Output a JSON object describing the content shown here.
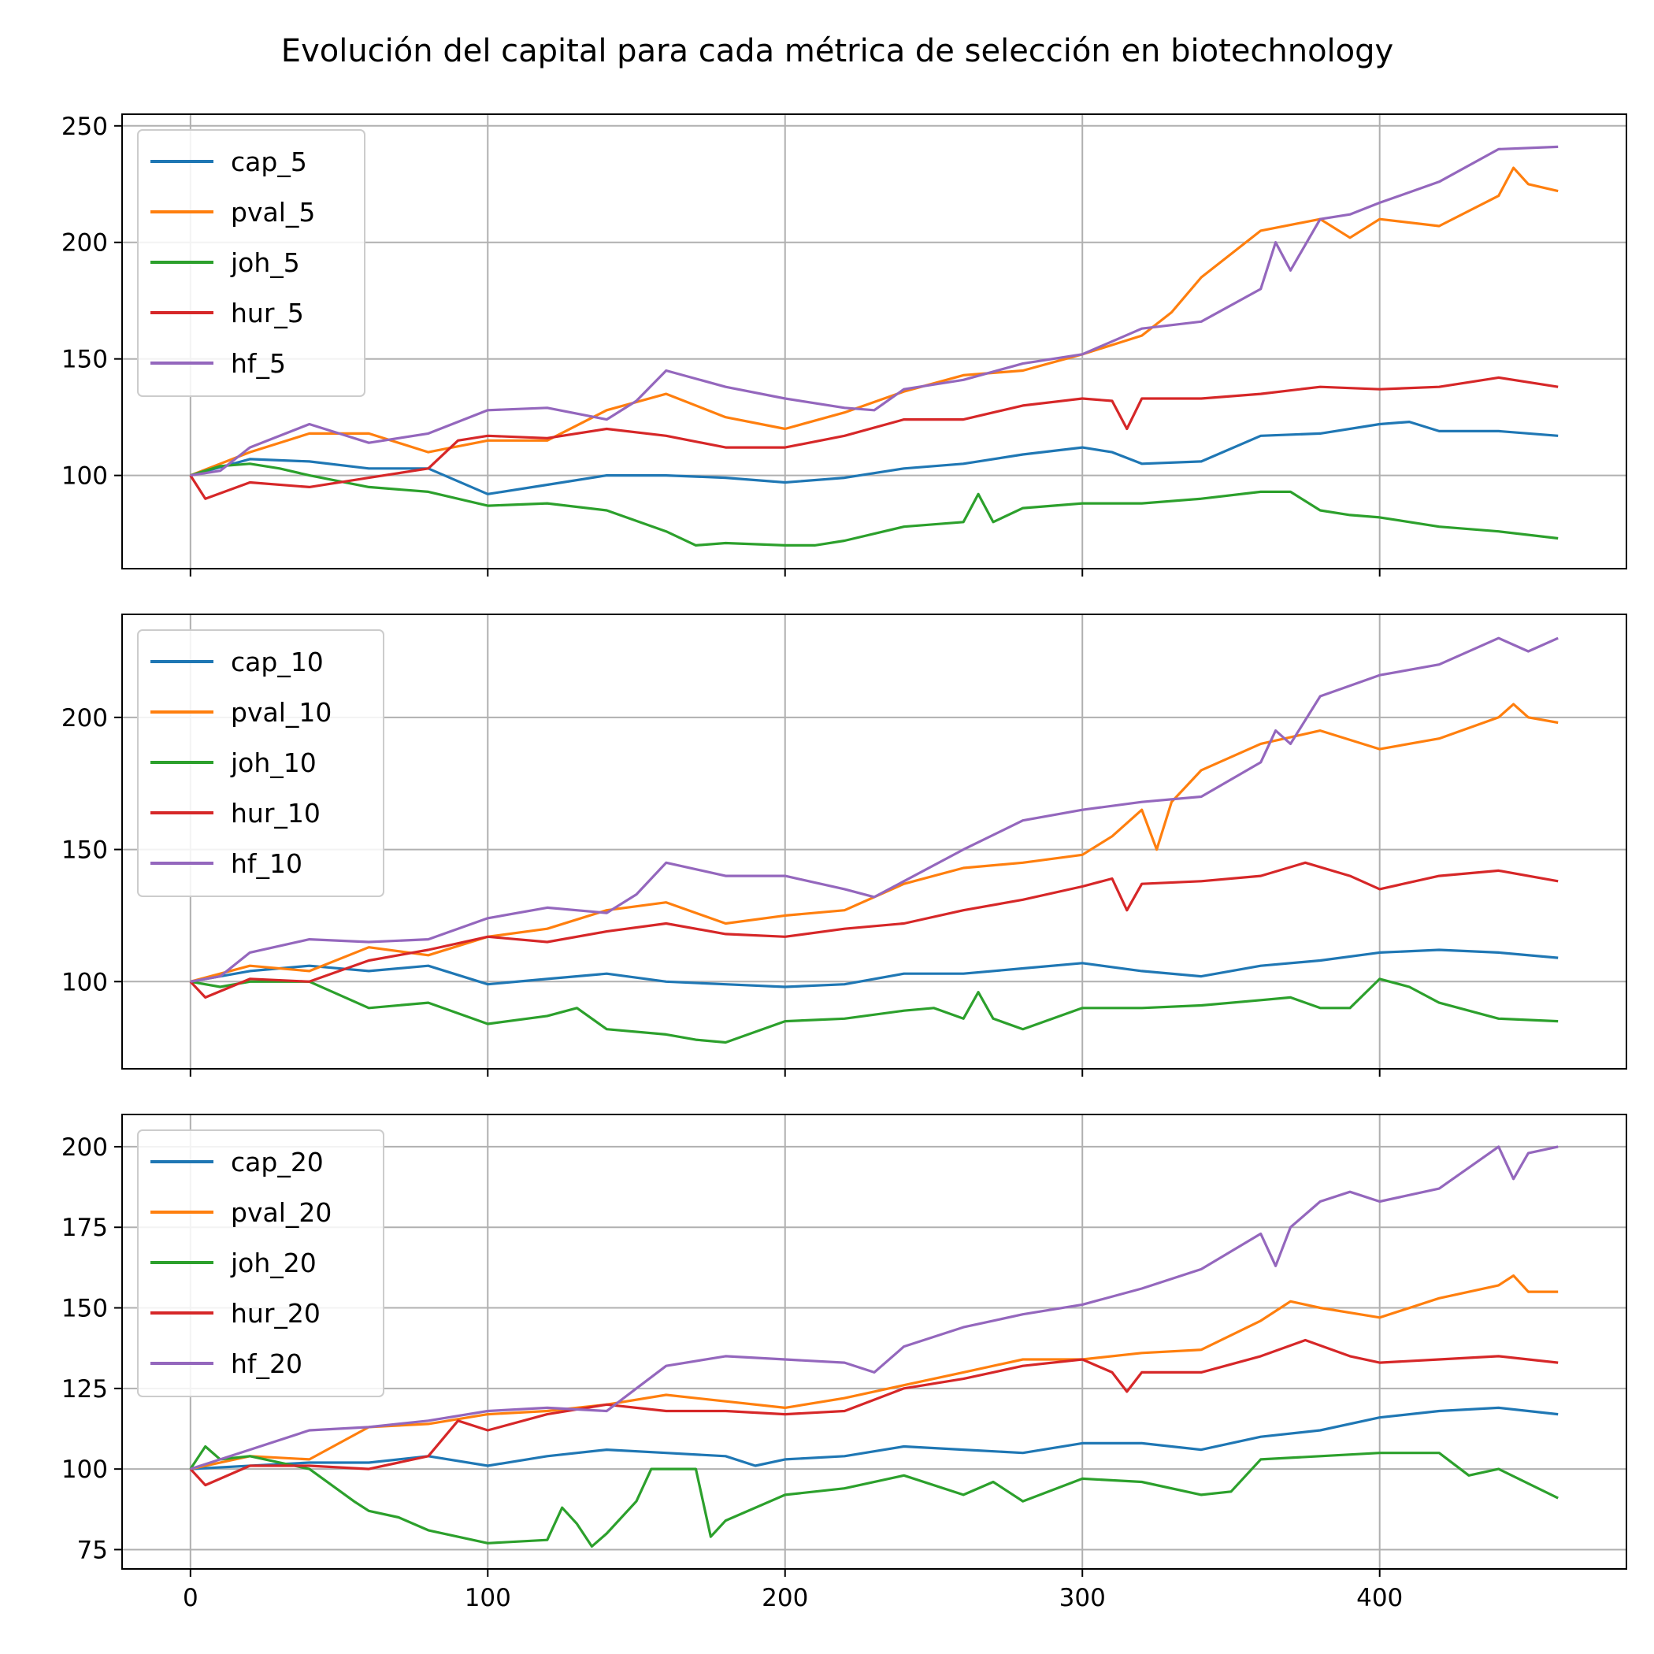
{
  "title": "Evolución del capital para cada métrica de selección en biotechnology",
  "chart_data": [
    {
      "type": "line",
      "xlim": [
        -23,
        483
      ],
      "ylim": [
        60,
        255
      ],
      "xticks": [
        0,
        100,
        200,
        300,
        400
      ],
      "yticks": [
        100,
        150,
        200,
        250
      ],
      "show_xtick_labels": false,
      "grid": true,
      "legend_position": "upper-left",
      "series": [
        {
          "name": "cap_5",
          "color": "#1f77b4",
          "x": [
            0,
            20,
            40,
            60,
            80,
            100,
            120,
            140,
            160,
            180,
            200,
            220,
            240,
            260,
            280,
            300,
            310,
            320,
            340,
            360,
            380,
            400,
            410,
            420,
            440,
            460
          ],
          "y": [
            100,
            107,
            106,
            103,
            103,
            92,
            96,
            100,
            100,
            99,
            97,
            99,
            103,
            105,
            109,
            112,
            110,
            105,
            106,
            117,
            118,
            122,
            123,
            119,
            119,
            117
          ]
        },
        {
          "name": "pval_5",
          "color": "#ff7f0e",
          "x": [
            0,
            20,
            40,
            60,
            80,
            100,
            120,
            140,
            160,
            180,
            200,
            220,
            240,
            260,
            280,
            300,
            320,
            330,
            340,
            360,
            380,
            390,
            400,
            420,
            440,
            445,
            450,
            460
          ],
          "y": [
            100,
            110,
            118,
            118,
            110,
            115,
            115,
            128,
            135,
            125,
            120,
            127,
            136,
            143,
            145,
            152,
            160,
            170,
            185,
            205,
            210,
            202,
            210,
            207,
            220,
            232,
            225,
            222
          ]
        },
        {
          "name": "joh_5",
          "color": "#2ca02c",
          "x": [
            0,
            10,
            20,
            30,
            40,
            60,
            80,
            100,
            120,
            140,
            160,
            170,
            180,
            200,
            210,
            220,
            240,
            260,
            265,
            270,
            280,
            300,
            320,
            340,
            360,
            370,
            380,
            390,
            400,
            420,
            440,
            460
          ],
          "y": [
            100,
            104,
            105,
            103,
            100,
            95,
            93,
            87,
            88,
            85,
            76,
            70,
            71,
            70,
            70,
            72,
            78,
            80,
            92,
            80,
            86,
            88,
            88,
            90,
            93,
            93,
            85,
            83,
            82,
            78,
            76,
            73
          ]
        },
        {
          "name": "hur_5",
          "color": "#d62728",
          "x": [
            0,
            5,
            20,
            40,
            60,
            80,
            90,
            100,
            120,
            140,
            160,
            180,
            200,
            220,
            240,
            260,
            270,
            280,
            300,
            310,
            315,
            320,
            340,
            360,
            380,
            400,
            420,
            440,
            460
          ],
          "y": [
            100,
            90,
            97,
            95,
            99,
            103,
            115,
            117,
            116,
            120,
            117,
            112,
            112,
            117,
            124,
            124,
            127,
            130,
            133,
            132,
            120,
            133,
            133,
            135,
            138,
            137,
            138,
            142,
            138
          ]
        },
        {
          "name": "hf_5",
          "color": "#9467bd",
          "x": [
            0,
            10,
            20,
            40,
            60,
            80,
            100,
            120,
            140,
            150,
            160,
            180,
            200,
            220,
            230,
            240,
            260,
            280,
            300,
            320,
            340,
            360,
            365,
            370,
            380,
            390,
            400,
            420,
            440,
            460
          ],
          "y": [
            100,
            102,
            112,
            122,
            114,
            118,
            128,
            129,
            124,
            132,
            145,
            138,
            133,
            129,
            128,
            137,
            141,
            148,
            152,
            163,
            166,
            180,
            200,
            188,
            210,
            212,
            217,
            226,
            240,
            241
          ]
        }
      ]
    },
    {
      "type": "line",
      "xlim": [
        -23,
        483
      ],
      "ylim": [
        67,
        239
      ],
      "xticks": [
        0,
        100,
        200,
        300,
        400
      ],
      "yticks": [
        100,
        150,
        200
      ],
      "show_xtick_labels": false,
      "grid": true,
      "legend_position": "upper-left",
      "series": [
        {
          "name": "cap_10",
          "color": "#1f77b4",
          "x": [
            0,
            20,
            40,
            60,
            80,
            100,
            120,
            140,
            160,
            180,
            200,
            220,
            240,
            260,
            280,
            300,
            320,
            340,
            360,
            380,
            400,
            420,
            440,
            460
          ],
          "y": [
            100,
            104,
            106,
            104,
            106,
            99,
            101,
            103,
            100,
            99,
            98,
            99,
            103,
            103,
            105,
            107,
            104,
            102,
            106,
            108,
            111,
            112,
            111,
            109
          ]
        },
        {
          "name": "pval_10",
          "color": "#ff7f0e",
          "x": [
            0,
            20,
            40,
            60,
            80,
            100,
            120,
            140,
            160,
            180,
            200,
            220,
            240,
            260,
            280,
            300,
            310,
            320,
            325,
            330,
            340,
            360,
            380,
            400,
            420,
            440,
            445,
            450,
            460
          ],
          "y": [
            100,
            106,
            104,
            113,
            110,
            117,
            120,
            127,
            130,
            122,
            125,
            127,
            137,
            143,
            145,
            148,
            155,
            165,
            150,
            168,
            180,
            190,
            195,
            188,
            192,
            200,
            205,
            200,
            198
          ]
        },
        {
          "name": "joh_10",
          "color": "#2ca02c",
          "x": [
            0,
            10,
            20,
            40,
            60,
            80,
            100,
            120,
            130,
            140,
            160,
            170,
            180,
            200,
            220,
            240,
            250,
            260,
            265,
            270,
            280,
            300,
            320,
            340,
            360,
            370,
            380,
            390,
            400,
            410,
            420,
            440,
            460
          ],
          "y": [
            100,
            98,
            100,
            100,
            90,
            92,
            84,
            87,
            90,
            82,
            80,
            78,
            77,
            85,
            86,
            89,
            90,
            86,
            96,
            86,
            82,
            90,
            90,
            91,
            93,
            94,
            90,
            90,
            101,
            98,
            92,
            86,
            85
          ]
        },
        {
          "name": "hur_10",
          "color": "#d62728",
          "x": [
            0,
            5,
            20,
            40,
            60,
            80,
            100,
            120,
            140,
            160,
            180,
            200,
            220,
            240,
            260,
            280,
            300,
            310,
            315,
            320,
            340,
            360,
            375,
            390,
            400,
            420,
            440,
            460
          ],
          "y": [
            100,
            94,
            101,
            100,
            108,
            112,
            117,
            115,
            119,
            122,
            118,
            117,
            120,
            122,
            127,
            131,
            136,
            139,
            127,
            137,
            138,
            140,
            145,
            140,
            135,
            140,
            142,
            138
          ]
        },
        {
          "name": "hf_10",
          "color": "#9467bd",
          "x": [
            0,
            10,
            20,
            40,
            60,
            80,
            100,
            120,
            140,
            150,
            160,
            180,
            200,
            220,
            230,
            240,
            260,
            280,
            300,
            320,
            340,
            360,
            365,
            370,
            380,
            390,
            400,
            420,
            440,
            450,
            460
          ],
          "y": [
            100,
            102,
            111,
            116,
            115,
            116,
            124,
            128,
            126,
            133,
            145,
            140,
            140,
            135,
            132,
            138,
            150,
            161,
            165,
            168,
            170,
            183,
            195,
            190,
            208,
            212,
            216,
            220,
            230,
            225,
            230
          ]
        }
      ]
    },
    {
      "type": "line",
      "xlim": [
        -23,
        483
      ],
      "ylim": [
        69,
        210
      ],
      "xticks": [
        0,
        100,
        200,
        300,
        400
      ],
      "yticks": [
        75,
        100,
        125,
        150,
        175,
        200
      ],
      "show_xtick_labels": true,
      "grid": true,
      "legend_position": "upper-left",
      "series": [
        {
          "name": "cap_20",
          "color": "#1f77b4",
          "x": [
            0,
            20,
            40,
            60,
            80,
            100,
            120,
            140,
            160,
            180,
            190,
            200,
            220,
            240,
            260,
            280,
            300,
            320,
            340,
            360,
            380,
            400,
            420,
            440,
            460
          ],
          "y": [
            100,
            101,
            102,
            102,
            104,
            101,
            104,
            106,
            105,
            104,
            101,
            103,
            104,
            107,
            106,
            105,
            108,
            108,
            106,
            110,
            112,
            116,
            118,
            119,
            117
          ]
        },
        {
          "name": "pval_20",
          "color": "#ff7f0e",
          "x": [
            0,
            20,
            40,
            60,
            80,
            100,
            120,
            140,
            160,
            180,
            200,
            220,
            240,
            260,
            280,
            300,
            320,
            340,
            360,
            370,
            380,
            400,
            420,
            440,
            445,
            450,
            460
          ],
          "y": [
            100,
            104,
            103,
            113,
            114,
            117,
            118,
            120,
            123,
            121,
            119,
            122,
            126,
            130,
            134,
            134,
            136,
            137,
            146,
            152,
            150,
            147,
            153,
            157,
            160,
            155,
            155
          ]
        },
        {
          "name": "joh_20",
          "color": "#2ca02c",
          "x": [
            0,
            5,
            10,
            20,
            40,
            55,
            60,
            70,
            80,
            100,
            120,
            125,
            130,
            135,
            140,
            150,
            155,
            160,
            170,
            175,
            180,
            200,
            220,
            240,
            260,
            270,
            280,
            300,
            320,
            340,
            350,
            360,
            380,
            400,
            420,
            430,
            440,
            460
          ],
          "y": [
            100,
            107,
            103,
            104,
            100,
            90,
            87,
            85,
            81,
            77,
            78,
            88,
            83,
            76,
            80,
            90,
            100,
            100,
            100,
            79,
            84,
            92,
            94,
            98,
            92,
            96,
            90,
            97,
            96,
            92,
            93,
            103,
            104,
            105,
            105,
            98,
            100,
            91
          ]
        },
        {
          "name": "hur_20",
          "color": "#d62728",
          "x": [
            0,
            5,
            20,
            40,
            60,
            80,
            90,
            100,
            120,
            140,
            160,
            180,
            200,
            220,
            240,
            260,
            280,
            300,
            310,
            315,
            320,
            340,
            360,
            375,
            390,
            400,
            420,
            440,
            460
          ],
          "y": [
            100,
            95,
            101,
            101,
            100,
            104,
            115,
            112,
            117,
            120,
            118,
            118,
            117,
            118,
            125,
            128,
            132,
            134,
            130,
            124,
            130,
            130,
            135,
            140,
            135,
            133,
            134,
            135,
            133
          ]
        },
        {
          "name": "hf_20",
          "color": "#9467bd",
          "x": [
            0,
            10,
            20,
            40,
            60,
            80,
            100,
            120,
            140,
            150,
            160,
            180,
            200,
            220,
            230,
            240,
            260,
            280,
            300,
            320,
            340,
            360,
            365,
            370,
            380,
            390,
            400,
            420,
            440,
            445,
            450,
            460
          ],
          "y": [
            100,
            103,
            106,
            112,
            113,
            115,
            118,
            119,
            118,
            125,
            132,
            135,
            134,
            133,
            130,
            138,
            144,
            148,
            151,
            156,
            162,
            173,
            163,
            175,
            183,
            186,
            183,
            187,
            200,
            190,
            198,
            200
          ]
        }
      ]
    }
  ]
}
